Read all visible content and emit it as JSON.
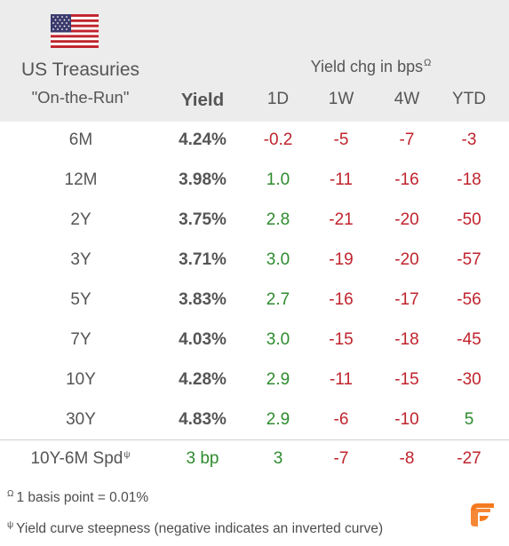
{
  "header": {
    "title_line1": "US Treasuries",
    "title_line2": "\"On-the-Run\"",
    "change_label": "Yield chg in bps",
    "change_label_sup": "Ω",
    "columns": [
      "Yield",
      "1D",
      "1W",
      "4W",
      "YTD"
    ]
  },
  "rows": [
    {
      "term": "6M",
      "yield": "4.24%",
      "d1": "-0.2",
      "w1": "-5",
      "w4": "-7",
      "ytd": "-3"
    },
    {
      "term": "12M",
      "yield": "3.98%",
      "d1": "1.0",
      "w1": "-11",
      "w4": "-16",
      "ytd": "-18"
    },
    {
      "term": "2Y",
      "yield": "3.75%",
      "d1": "2.8",
      "w1": "-21",
      "w4": "-20",
      "ytd": "-50"
    },
    {
      "term": "3Y",
      "yield": "3.71%",
      "d1": "3.0",
      "w1": "-19",
      "w4": "-20",
      "ytd": "-57"
    },
    {
      "term": "5Y",
      "yield": "3.83%",
      "d1": "2.7",
      "w1": "-16",
      "w4": "-17",
      "ytd": "-56"
    },
    {
      "term": "7Y",
      "yield": "4.03%",
      "d1": "3.0",
      "w1": "-15",
      "w4": "-18",
      "ytd": "-45"
    },
    {
      "term": "10Y",
      "yield": "4.28%",
      "d1": "2.9",
      "w1": "-11",
      "w4": "-15",
      "ytd": "-30"
    },
    {
      "term": "30Y",
      "yield": "4.83%",
      "d1": "2.9",
      "w1": "-6",
      "w4": "-10",
      "ytd": "5"
    }
  ],
  "spread_row": {
    "term": "10Y-6M Spd",
    "term_sup": "ψ",
    "yield": "3 bp",
    "d1": "3",
    "w1": "-7",
    "w4": "-8",
    "ytd": "-27"
  },
  "footnotes": {
    "note1_sup": "Ω",
    "note1": "1 basis point = 0.01%",
    "note2_sup": "ψ",
    "note2": "Yield curve steepness (negative indicates an inverted curve)"
  },
  "colors": {
    "header_bg": "#ececec",
    "positive": "#2e8b2e",
    "negative": "#c0232c",
    "logo": "#f47a20"
  },
  "icons": {
    "flag": "us-flag-icon",
    "logo": "brand-logo-icon"
  }
}
